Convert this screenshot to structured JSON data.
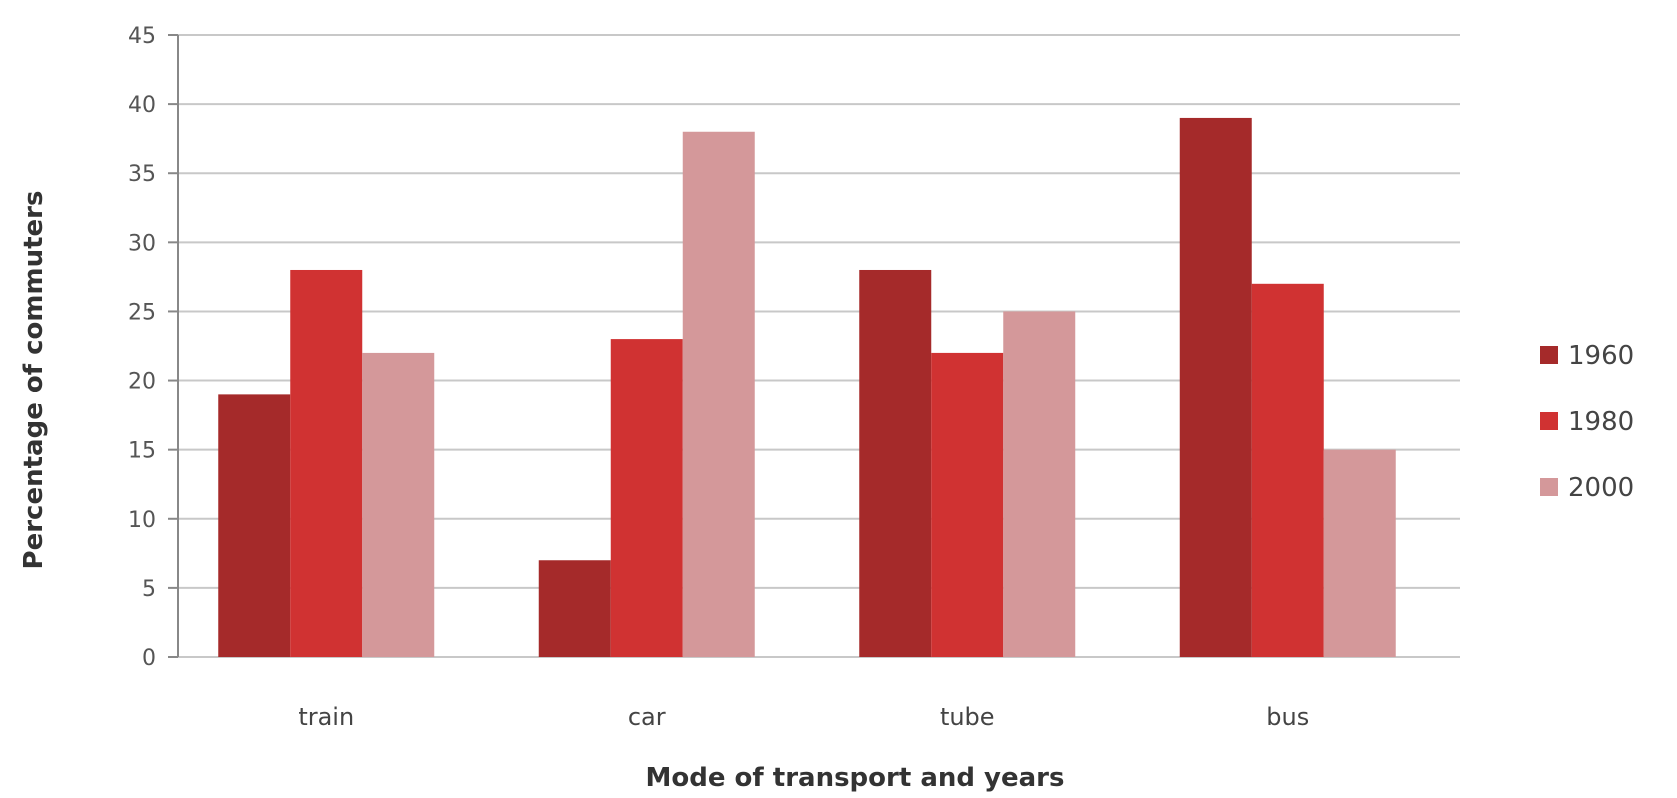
{
  "chart_data": {
    "type": "bar",
    "title": "",
    "xlabel": "Mode of transport and years",
    "ylabel": "Percentage of commuters",
    "categories": [
      "train",
      "car",
      "tube",
      "bus"
    ],
    "series": [
      {
        "name": "1960",
        "values": [
          19,
          7,
          28,
          39
        ],
        "color": "#a52a2a"
      },
      {
        "name": "1980",
        "values": [
          28,
          23,
          22,
          27
        ],
        "color": "#d03232"
      },
      {
        "name": "2000",
        "values": [
          22,
          38,
          25,
          15
        ],
        "color": "#d4989a"
      }
    ],
    "ylim": [
      0,
      45
    ],
    "yticks": [
      "0",
      "5",
      "10",
      "15",
      "20",
      "25",
      "30",
      "35",
      "40",
      "45"
    ],
    "grid": true,
    "legend_position": "right"
  }
}
